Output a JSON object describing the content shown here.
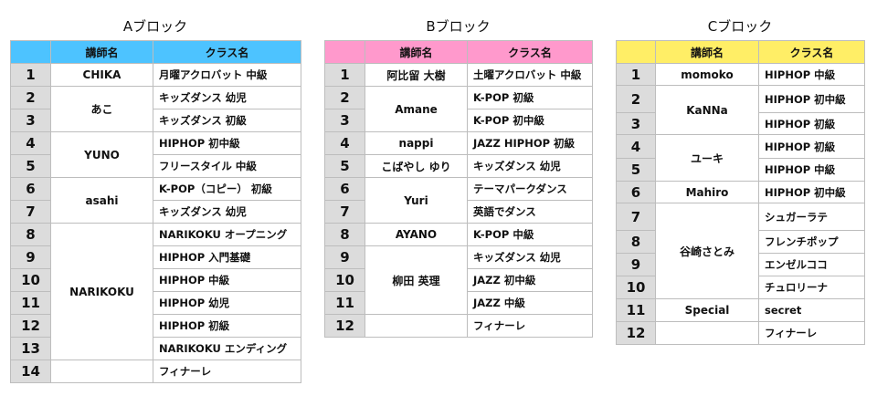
{
  "header_labels": {
    "num": "",
    "teacher": "講師名",
    "class": "クラス名"
  },
  "blocks": [
    {
      "title": "Aブロック",
      "color": "#4dc3ff",
      "rows": [
        {
          "num": "1",
          "teacher": "CHIKA",
          "span": 1,
          "class": "月曜アクロバット 中級"
        },
        {
          "num": "2",
          "teacher": "あこ",
          "span": 2,
          "class": "キッズダンス 幼児"
        },
        {
          "num": "3",
          "class": "キッズダンス 初級"
        },
        {
          "num": "4",
          "teacher": "YUNO",
          "span": 2,
          "class": "HIPHOP 初中級"
        },
        {
          "num": "5",
          "class": "フリースタイル 中級"
        },
        {
          "num": "6",
          "teacher": "asahi",
          "span": 2,
          "class": "K-POP（コピー） 初級"
        },
        {
          "num": "7",
          "class": "キッズダンス 幼児"
        },
        {
          "num": "8",
          "teacher": "NARIKOKU",
          "span": 6,
          "class": "NARIKOKU オープニング"
        },
        {
          "num": "9",
          "class": "HIPHOP 入門基礎"
        },
        {
          "num": "10",
          "class": "HIPHOP 中級"
        },
        {
          "num": "11",
          "class": "HIPHOP 幼児"
        },
        {
          "num": "12",
          "class": "HIPHOP 初級"
        },
        {
          "num": "13",
          "class": "NARIKOKU エンディング"
        },
        {
          "num": "14",
          "teacher": "",
          "span": 1,
          "class": "フィナーレ"
        }
      ]
    },
    {
      "title": "Bブロック",
      "color": "#ff99cc",
      "rows": [
        {
          "num": "1",
          "teacher": "阿比留 大樹",
          "span": 1,
          "class": "土曜アクロバット 中級"
        },
        {
          "num": "2",
          "teacher": "Amane",
          "span": 2,
          "class": "K-POP 初級"
        },
        {
          "num": "3",
          "class": "K-POP 初中級"
        },
        {
          "num": "4",
          "teacher": "nappi",
          "span": 1,
          "class": "JAZZ HIPHOP 初級"
        },
        {
          "num": "5",
          "teacher": "こばやし ゆり",
          "span": 1,
          "class": "キッズダンス 幼児"
        },
        {
          "num": "6",
          "teacher": "Yuri",
          "span": 2,
          "class": "テーマパークダンス"
        },
        {
          "num": "7",
          "class": "英語でダンス"
        },
        {
          "num": "8",
          "teacher": "AYANO",
          "span": 1,
          "class": "K-POP 中級"
        },
        {
          "num": "9",
          "teacher": "柳田 英理",
          "span": 3,
          "class": "キッズダンス 幼児"
        },
        {
          "num": "10",
          "class": "JAZZ 初中級"
        },
        {
          "num": "11",
          "class": "JAZZ 中級"
        },
        {
          "num": "12",
          "teacher": "",
          "span": 1,
          "class": "フィナーレ"
        }
      ]
    },
    {
      "title": "Cブロック",
      "color": "#ffee66",
      "rows": [
        {
          "num": "1",
          "teacher": "momoko",
          "span": 1,
          "class": "HIPHOP 中級"
        },
        {
          "num": "2",
          "teacher": "KaNNa",
          "span": 2,
          "class": "HIPHOP 初中級"
        },
        {
          "num": "3",
          "class": "HIPHOP 初級"
        },
        {
          "num": "4",
          "teacher": "ユーキ",
          "span": 2,
          "class": "HIPHOP 初級"
        },
        {
          "num": "5",
          "class": "HIPHOP 中級"
        },
        {
          "num": "6",
          "teacher": "Mahiro",
          "span": 1,
          "class": "HIPHOP 初中級"
        },
        {
          "num": "7",
          "teacher": "谷崎さとみ",
          "span": 4,
          "class": "シュガーラテ"
        },
        {
          "num": "8",
          "class": "フレンチポップ"
        },
        {
          "num": "9",
          "class": "エンゼルココ"
        },
        {
          "num": "10",
          "class": "チュロリーナ"
        },
        {
          "num": "11",
          "teacher": "Special",
          "span": 1,
          "class": "secret"
        },
        {
          "num": "12",
          "teacher": "",
          "span": 1,
          "class": "フィナーレ"
        }
      ]
    }
  ]
}
